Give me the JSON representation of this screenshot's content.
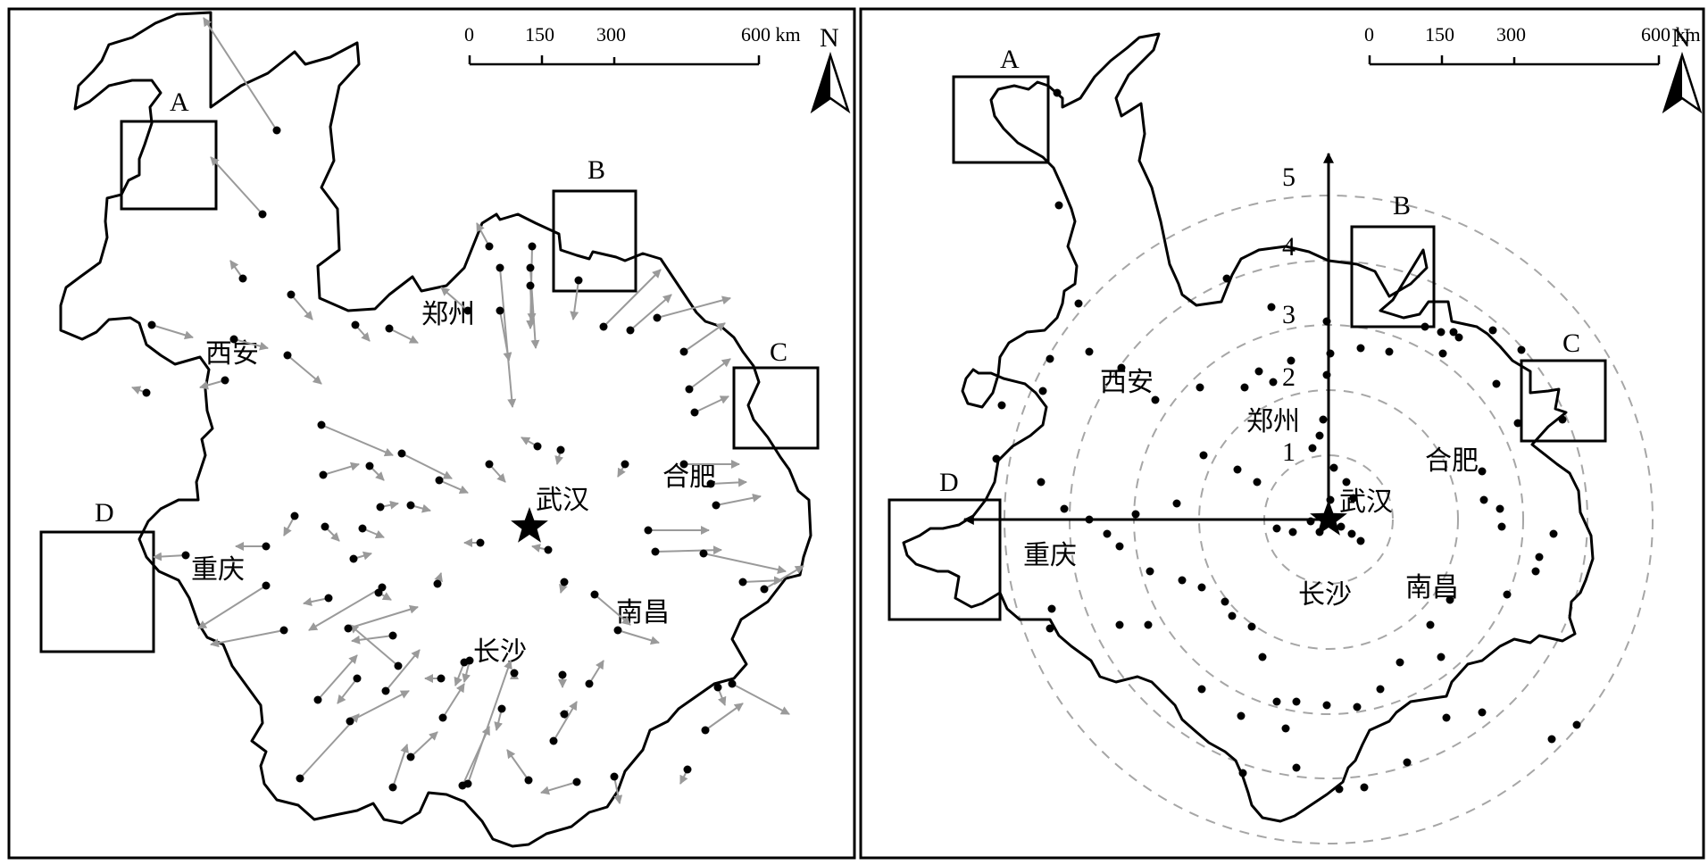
{
  "maps": [
    {
      "id": "left",
      "cities": [
        "西安",
        "郑州",
        "合肥",
        "武汉",
        "重庆",
        "长沙",
        "南昌"
      ],
      "box_labels": [
        "A",
        "B",
        "C",
        "D"
      ],
      "scale_ticks": [
        "0",
        "150",
        "300",
        "600 km"
      ],
      "north": "N"
    },
    {
      "id": "right",
      "cities": [
        "西安",
        "郑州",
        "合肥",
        "武汉",
        "重庆",
        "长沙",
        "南昌"
      ],
      "box_labels": [
        "A",
        "B",
        "C",
        "D"
      ],
      "scale_ticks": [
        "0",
        "150",
        "300",
        "600 km"
      ],
      "north": "N",
      "ring_labels": [
        "1",
        "2",
        "3",
        "4",
        "5"
      ]
    }
  ],
  "colors": {
    "arrow": "#9a9a9a",
    "ring": "#a6a6a6",
    "ink": "#000000"
  }
}
